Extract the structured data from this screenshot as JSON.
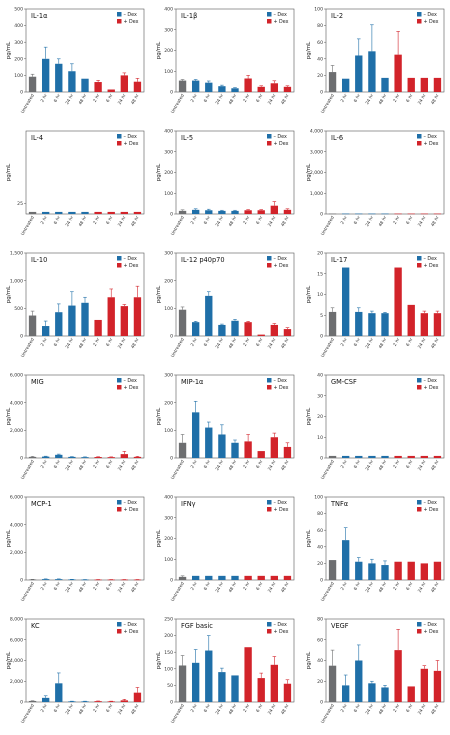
{
  "colors": {
    "untreated": "#6d6e70",
    "minus_dex": "#1f6fa8",
    "plus_dex": "#d2232a"
  },
  "chart_data": [
    {
      "type": "bar",
      "title": "IL-1α",
      "ylabel": "pg/mL",
      "ylim": [
        0,
        500
      ],
      "yticks": [
        0,
        100,
        200,
        300,
        400,
        500
      ],
      "ytick_labels": [
        "0",
        "100",
        "200",
        "300",
        "400",
        "500"
      ],
      "categories": [
        "Untreated",
        "2 hr",
        "6 hr",
        "24 hr",
        "48 hr",
        "2 hr",
        "6 hr",
        "24 hr",
        "48 hr"
      ],
      "legend": [
        "– Dex",
        "+ Dex"
      ],
      "values": [
        92,
        200,
        170,
        125,
        80,
        60,
        15,
        100,
        62
      ],
      "errors": [
        15,
        70,
        30,
        45,
        0,
        10,
        0,
        15,
        20
      ]
    },
    {
      "type": "bar",
      "title": "IL-1β",
      "ylabel": "pg/mL",
      "ylim": [
        0,
        400
      ],
      "yticks": [
        0,
        100,
        200,
        300,
        400
      ],
      "ytick_labels": [
        "0",
        "100",
        "200",
        "300",
        "400"
      ],
      "categories": [
        "Untreated",
        "2 hr",
        "6 hr",
        "24 hr",
        "48 hr",
        "2 hr",
        "6 hr",
        "24 hr",
        "48 hr"
      ],
      "legend": [
        "– Dex",
        "+ Dex"
      ],
      "values": [
        55,
        55,
        45,
        28,
        18,
        65,
        25,
        42,
        25
      ],
      "errors": [
        5,
        5,
        8,
        5,
        3,
        15,
        5,
        12,
        5
      ]
    },
    {
      "type": "bar",
      "title": "IL-2",
      "ylabel": "pg/mL",
      "ylim": [
        0,
        100
      ],
      "yticks": [
        0,
        20,
        40,
        60,
        80,
        100
      ],
      "ytick_labels": [
        "0",
        "20",
        "40",
        "60",
        "80",
        "100"
      ],
      "categories": [
        "Untreated",
        "2 hr",
        "6 hr",
        "24 hr",
        "48 hr",
        "2 hr",
        "6 hr",
        "24 hr",
        "48 hr"
      ],
      "legend": [
        "– Dex",
        "+ Dex"
      ],
      "values": [
        24,
        16,
        44,
        49,
        17,
        45,
        17,
        17,
        17
      ],
      "errors": [
        8,
        0,
        20,
        32,
        0,
        28,
        0,
        0,
        0
      ]
    },
    {
      "type": "bar",
      "title": "IL-4",
      "ylabel": "pg/mL",
      "ylim": [
        20,
        60
      ],
      "yticks": [
        25
      ],
      "ytick_labels": [
        "25"
      ],
      "categories": [
        "Untreated",
        "2 hr",
        "6 hr",
        "24 hr",
        "48 hr",
        "2 hr",
        "6 hr",
        "24 hr",
        "48 hr"
      ],
      "legend": [
        "– Dex",
        "+ Dex"
      ],
      "values": [
        21,
        21,
        21,
        21,
        21,
        21,
        21,
        21,
        21
      ],
      "errors": [
        0,
        0,
        0,
        0,
        0,
        0,
        0,
        0,
        0
      ]
    },
    {
      "type": "bar",
      "title": "IL-5",
      "ylabel": "pg/mL",
      "ylim": [
        0,
        400
      ],
      "yticks": [
        0,
        100,
        200,
        300,
        400
      ],
      "ytick_labels": [
        "0",
        "100",
        "200",
        "300",
        "400"
      ],
      "categories": [
        "Untreated",
        "2 hr",
        "6 hr",
        "24 hr",
        "48 hr",
        "2 hr",
        "6 hr",
        "24 hr",
        "48 hr"
      ],
      "legend": [
        "– Dex",
        "+ Dex"
      ],
      "values": [
        15,
        20,
        18,
        15,
        15,
        18,
        18,
        40,
        20
      ],
      "errors": [
        5,
        5,
        5,
        3,
        3,
        3,
        3,
        20,
        5
      ]
    },
    {
      "type": "bar",
      "title": "IL-6",
      "ylabel": "pg/mL",
      "ylim": [
        0,
        4000
      ],
      "yticks": [
        0,
        1000,
        2000,
        3000,
        4000
      ],
      "ytick_labels": [
        "0",
        "1,000",
        "2,000",
        "3,000",
        "4,000"
      ],
      "categories": [
        "Untreated",
        "2 hr",
        "6 hr",
        "24 hr",
        "48 hr",
        "2 hr",
        "6 hr",
        "24 hr",
        "48 hr"
      ],
      "legend": [
        "– Dex",
        "+ Dex"
      ],
      "values": [
        20,
        20,
        20,
        20,
        20,
        20,
        20,
        20,
        20
      ],
      "errors": [
        0,
        0,
        0,
        0,
        0,
        0,
        0,
        0,
        0
      ]
    },
    {
      "type": "bar",
      "title": "IL-10",
      "ylabel": "pg/mL",
      "ylim": [
        0,
        1500
      ],
      "yticks": [
        0,
        500,
        1000,
        1500
      ],
      "ytick_labels": [
        "0",
        "500",
        "1,000",
        "1,500"
      ],
      "categories": [
        "Untreated",
        "2 hr",
        "6 hr",
        "24 hr",
        "48 hr",
        "2 hr",
        "6 hr",
        "24 hr",
        "48 hr"
      ],
      "legend": [
        "– Dex",
        "+ Dex"
      ],
      "values": [
        370,
        180,
        430,
        550,
        600,
        290,
        700,
        540,
        700
      ],
      "errors": [
        80,
        90,
        150,
        250,
        100,
        0,
        150,
        30,
        200
      ]
    },
    {
      "type": "bar",
      "title": "IL-12 p40p70",
      "ylabel": "pg/mL",
      "ylim": [
        0,
        300
      ],
      "yticks": [
        0,
        100,
        200,
        300
      ],
      "ytick_labels": [
        "0",
        "100",
        "200",
        "300"
      ],
      "categories": [
        "Untreated",
        "2 hr",
        "6 hr",
        "24 hr",
        "48 hr",
        "2 hr",
        "6 hr",
        "24 hr",
        "48 hr"
      ],
      "legend": [
        "– Dex",
        "+ Dex"
      ],
      "values": [
        95,
        50,
        145,
        40,
        55,
        50,
        5,
        40,
        25
      ],
      "errors": [
        10,
        3,
        15,
        3,
        5,
        3,
        0,
        5,
        5
      ]
    },
    {
      "type": "bar",
      "title": "IL-17",
      "ylabel": "pg/mL",
      "ylim": [
        0,
        20
      ],
      "yticks": [
        0,
        5,
        10,
        15,
        20
      ],
      "ytick_labels": [
        "0",
        "5",
        "10",
        "15",
        "20"
      ],
      "categories": [
        "Untreated",
        "2 hr",
        "6 hr",
        "24 hr",
        "48 hr",
        "2 hr",
        "6 hr",
        "24 hr",
        "48 hr"
      ],
      "legend": [
        "– Dex",
        "+ Dex"
      ],
      "values": [
        5.8,
        16.5,
        5.8,
        5.5,
        5.5,
        16.5,
        7.5,
        5.5,
        5.5
      ],
      "errors": [
        1,
        0,
        1,
        0.5,
        0.2,
        0,
        0,
        0.5,
        0.5
      ]
    },
    {
      "type": "bar",
      "title": "MIG",
      "ylabel": "pg/mL",
      "ylim": [
        0,
        6000
      ],
      "yticks": [
        0,
        2000,
        4000,
        6000
      ],
      "ytick_labels": [
        "0",
        "2,000",
        "4,000",
        "6,000"
      ],
      "categories": [
        "Untreated",
        "2 hr",
        "6 hr",
        "24 hr",
        "48 hr",
        "2 hr",
        "6 hr",
        "24 hr",
        "48 hr"
      ],
      "legend": [
        "– Dex",
        "+ Dex"
      ],
      "values": [
        80,
        100,
        230,
        80,
        60,
        70,
        60,
        280,
        80
      ],
      "errors": [
        40,
        30,
        50,
        20,
        20,
        20,
        20,
        200,
        40
      ]
    },
    {
      "type": "bar",
      "title": "MIP-1α",
      "ylabel": "pg/mL",
      "ylim": [
        0,
        300
      ],
      "yticks": [
        0,
        100,
        200,
        300
      ],
      "ytick_labels": [
        "0",
        "100",
        "200",
        "300"
      ],
      "categories": [
        "Untreated",
        "2 hr",
        "6 hr",
        "24 hr",
        "48 hr",
        "2 hr",
        "6 hr",
        "24 hr",
        "48 hr"
      ],
      "legend": [
        "– Dex",
        "+ Dex"
      ],
      "values": [
        55,
        165,
        110,
        85,
        55,
        60,
        25,
        75,
        40
      ],
      "errors": [
        30,
        40,
        20,
        35,
        10,
        25,
        0,
        15,
        15
      ]
    },
    {
      "type": "bar",
      "title": "GM-CSF",
      "ylabel": "pg/mL",
      "ylim": [
        0,
        40
      ],
      "yticks": [
        0,
        10,
        20,
        30,
        40
      ],
      "ytick_labels": [
        "0",
        "10",
        "20",
        "30",
        "40"
      ],
      "categories": [
        "Untreated",
        "2 hr",
        "6 hr",
        "24 hr",
        "48 hr",
        "2 hr",
        "6 hr",
        "24 hr",
        "48 hr"
      ],
      "legend": [
        "– Dex",
        "+ Dex"
      ],
      "values": [
        1,
        1,
        1,
        1,
        1,
        1,
        1,
        1,
        1
      ],
      "errors": [
        0,
        0,
        0,
        0,
        0,
        0,
        0,
        0,
        0
      ]
    },
    {
      "type": "bar",
      "title": "MCP-1",
      "ylabel": "pg/mL",
      "ylim": [
        0,
        6000
      ],
      "yticks": [
        0,
        2000,
        4000,
        6000
      ],
      "ytick_labels": [
        "0",
        "2,000",
        "4,000",
        "6,000"
      ],
      "categories": [
        "Untreated",
        "2 hr",
        "6 hr",
        "24 hr",
        "48 hr",
        "2 hr",
        "6 hr",
        "24 hr",
        "48 hr"
      ],
      "legend": [
        "– Dex",
        "+ Dex"
      ],
      "values": [
        40,
        60,
        60,
        40,
        30,
        30,
        30,
        30,
        30
      ],
      "errors": [
        10,
        20,
        20,
        10,
        5,
        5,
        5,
        5,
        5
      ]
    },
    {
      "type": "bar",
      "title": "IFNγ",
      "ylabel": "pg/mL",
      "ylim": [
        0,
        400
      ],
      "yticks": [
        0,
        100,
        200,
        300,
        400
      ],
      "ytick_labels": [
        "0",
        "100",
        "200",
        "300",
        "400"
      ],
      "categories": [
        "Untreated",
        "2 hr",
        "6 hr",
        "24 hr",
        "48 hr",
        "2 hr",
        "6 hr",
        "24 hr",
        "48 hr"
      ],
      "legend": [
        "– Dex",
        "+ Dex"
      ],
      "values": [
        15,
        20,
        20,
        20,
        20,
        20,
        20,
        20,
        20
      ],
      "errors": [
        5,
        0,
        0,
        0,
        0,
        0,
        0,
        0,
        0
      ]
    },
    {
      "type": "bar",
      "title": "TNFα",
      "ylabel": "pg/mL",
      "ylim": [
        0,
        100
      ],
      "yticks": [
        0,
        20,
        40,
        60,
        80,
        100
      ],
      "ytick_labels": [
        "0",
        "20",
        "40",
        "60",
        "80",
        "100"
      ],
      "categories": [
        "Untreated",
        "2 hr",
        "6 hr",
        "24 hr",
        "48 hr",
        "2 hr",
        "6 hr",
        "24 hr",
        "48 hr"
      ],
      "legend": [
        "– Dex",
        "+ Dex"
      ],
      "values": [
        24,
        48,
        22,
        20,
        18,
        22,
        22,
        20,
        22
      ],
      "errors": [
        0,
        15,
        5,
        5,
        5,
        0,
        0,
        0,
        0
      ]
    },
    {
      "type": "bar",
      "title": "KC",
      "ylabel": "pg/mL",
      "ylim": [
        0,
        8000
      ],
      "yticks": [
        0,
        2000,
        4000,
        6000,
        8000
      ],
      "ytick_labels": [
        "0",
        "2,000",
        "4,000",
        "6,000",
        "8,000"
      ],
      "categories": [
        "Untreated",
        "2 hr",
        "6 hr",
        "24 hr",
        "48 hr",
        "2 hr",
        "6 hr",
        "24 hr",
        "48 hr"
      ],
      "legend": [
        "– Dex",
        "+ Dex"
      ],
      "values": [
        100,
        400,
        1800,
        60,
        60,
        80,
        60,
        160,
        900
      ],
      "errors": [
        20,
        200,
        1000,
        20,
        20,
        20,
        20,
        100,
        500
      ]
    },
    {
      "type": "bar",
      "title": "FGF basic",
      "ylabel": "pg/mL",
      "ylim": [
        0,
        250
      ],
      "yticks": [
        0,
        50,
        100,
        150,
        200,
        250
      ],
      "ytick_labels": [
        "0",
        "50",
        "100",
        "150",
        "200",
        "250"
      ],
      "categories": [
        "Untreated",
        "2 hr",
        "6 hr",
        "24 hr",
        "48 hr",
        "2 hr",
        "6 hr",
        "24 hr",
        "48 hr"
      ],
      "legend": [
        "– Dex",
        "+ Dex"
      ],
      "values": [
        110,
        118,
        155,
        90,
        80,
        165,
        72,
        112,
        55
      ],
      "errors": [
        30,
        40,
        45,
        12,
        0,
        0,
        15,
        25,
        12
      ]
    },
    {
      "type": "bar",
      "title": "VEGF",
      "ylabel": "pg/mL",
      "ylim": [
        0,
        80
      ],
      "yticks": [
        0,
        20,
        40,
        60,
        80
      ],
      "ytick_labels": [
        "0",
        "20",
        "40",
        "60",
        "80"
      ],
      "categories": [
        "Untreated",
        "2 hr",
        "6 hr",
        "24 hr",
        "48 hr",
        "2 hr",
        "6 hr",
        "24 hr",
        "48 hr"
      ],
      "legend": [
        "– Dex",
        "+ Dex"
      ],
      "values": [
        35,
        16,
        40,
        18,
        14,
        50,
        15,
        32,
        30
      ],
      "errors": [
        15,
        10,
        15,
        2,
        2,
        20,
        0,
        3,
        10
      ]
    }
  ]
}
